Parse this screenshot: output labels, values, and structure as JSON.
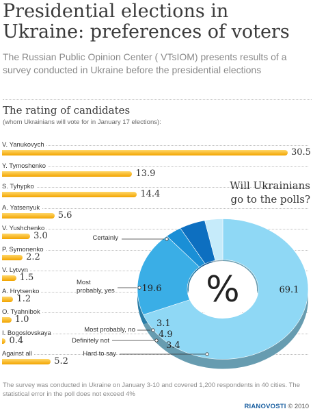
{
  "header": {
    "title": "Presidential elections in Ukraine: preferences of voters",
    "lead": "The Russian Public Opinion Center ( VTsIOM) presents results of a survey conducted in Ukraine before the presidential elections"
  },
  "chart_data": [
    {
      "type": "bar",
      "orientation": "horizontal",
      "title": "The rating of candidates",
      "subtitle": "(whom Ukrainians will vote for in January 17 elections):",
      "categories": [
        "V. Yanukovych",
        "Y. Tymoshenko",
        "S. Tyhypko",
        "A. Yatsenyuk",
        "V. Yushchenko",
        "P. Symonenko",
        "V. Lytvyn",
        "A. Hrytsenko",
        "O. Tyahnibok",
        "I. Bogoslovskaya",
        "Against all"
      ],
      "values": [
        30.5,
        13.9,
        14.4,
        5.6,
        3.0,
        2.2,
        1.5,
        1.2,
        1.0,
        0.4,
        5.2
      ],
      "value_labels": [
        "30.5",
        "13.9",
        "14.4",
        "5.6",
        "3.0",
        "2.2",
        "1.5",
        "1.2",
        "1.0",
        "0.4",
        "5.2"
      ],
      "color": "#f7b500"
    },
    {
      "type": "pie",
      "style": "3d-donut",
      "title": "Will Ukrainians go to the polls?",
      "center_label": "%",
      "slices": [
        {
          "label": "Certainly",
          "value": 69.1,
          "value_label": "69.1",
          "color": "#8fd8f5"
        },
        {
          "label": "Most probably, yes",
          "value": 19.6,
          "value_label": "19.6",
          "color": "#3aaee6"
        },
        {
          "label": "Most probably, no",
          "value": 3.1,
          "value_label": "3.1",
          "color": "#1a8fd6"
        },
        {
          "label": "Definitely not",
          "value": 4.9,
          "value_label": "4.9",
          "color": "#0d6fc0"
        },
        {
          "label": "Hard to say",
          "value": 3.4,
          "value_label": "3.4",
          "color": "#c6ebfa"
        }
      ]
    }
  ],
  "footnote": {
    "text": "The survey was conducted in Ukraine on January 3-10 and covered 1,200 respondents in 40 cities. The statistical error in the poll does not exceed 4%"
  },
  "credit": {
    "brand": "RIANOVOSTI",
    "year": "© 2010"
  }
}
